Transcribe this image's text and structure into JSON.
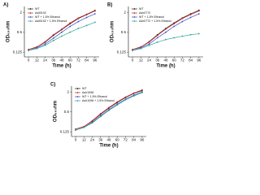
{
  "chart_data": [
    {
      "type": "line",
      "panel_label": "A)",
      "x_label": "Time (h)",
      "y_label": "OD₆₀₀nm",
      "x": [
        0,
        12,
        24,
        36,
        48,
        60,
        72,
        84,
        96
      ],
      "xlim": [
        -6,
        102
      ],
      "xticks": [
        0,
        12,
        24,
        36,
        48,
        60,
        72,
        84,
        96
      ],
      "ylim": [
        0.09,
        3
      ],
      "yticks": [
        0.125,
        0.5,
        2
      ],
      "log_scale": "y",
      "legend": "upper left",
      "series": [
        {
          "name": "WT",
          "color": "#222222",
          "values": [
            0.15,
            0.18,
            0.25,
            0.4,
            0.6,
            0.9,
            1.3,
            1.7,
            2.2
          ]
        },
        {
          "name": "Δsll0192",
          "color": "#d62728",
          "values": [
            0.15,
            0.18,
            0.26,
            0.42,
            0.62,
            0.95,
            1.35,
            1.75,
            2.3
          ]
        },
        {
          "name": "WT + 1.5% Ethanol",
          "color": "#3b4cc0",
          "values": [
            0.14,
            0.17,
            0.22,
            0.33,
            0.5,
            0.75,
            1.05,
            1.4,
            1.8
          ]
        },
        {
          "name": "Δsll0192 + 1.5% Ethanol",
          "color": "#2ca89a",
          "values": [
            0.14,
            0.16,
            0.2,
            0.28,
            0.38,
            0.5,
            0.65,
            0.8,
            1.0
          ]
        }
      ]
    },
    {
      "type": "line",
      "panel_label": "B)",
      "x_label": "Time (h)",
      "y_label": "OD₆₀₀nm",
      "x": [
        0,
        12,
        24,
        36,
        48,
        60,
        72,
        84,
        96
      ],
      "xlim": [
        -6,
        102
      ],
      "xticks": [
        0,
        12,
        24,
        36,
        48,
        60,
        72,
        84,
        96
      ],
      "ylim": [
        0.09,
        3
      ],
      "yticks": [
        0.125,
        0.5,
        2
      ],
      "log_scale": "y",
      "legend": "upper left",
      "series": [
        {
          "name": "WT",
          "color": "#222222",
          "values": [
            0.15,
            0.18,
            0.26,
            0.42,
            0.65,
            0.95,
            1.35,
            1.8,
            2.3
          ]
        },
        {
          "name": "Δslr0772",
          "color": "#d62728",
          "values": [
            0.15,
            0.18,
            0.25,
            0.4,
            0.62,
            0.9,
            1.3,
            1.7,
            2.2
          ]
        },
        {
          "name": "WT + 1.5% Ethanol",
          "color": "#3b4cc0",
          "values": [
            0.14,
            0.17,
            0.22,
            0.34,
            0.5,
            0.75,
            1.05,
            1.4,
            1.8
          ]
        },
        {
          "name": "Δslr0772 + 1.5% Ethanol",
          "color": "#2ca89a",
          "values": [
            0.14,
            0.16,
            0.2,
            0.25,
            0.3,
            0.34,
            0.38,
            0.42,
            0.45
          ]
        }
      ]
    },
    {
      "type": "line",
      "panel_label": "C)",
      "x_label": "Time (h)",
      "y_label": "OD₆₀₀nm",
      "x": [
        0,
        12,
        24,
        36,
        48,
        60,
        72,
        84,
        96
      ],
      "xlim": [
        -6,
        102
      ],
      "xticks": [
        0,
        12,
        24,
        36,
        48,
        60,
        72,
        84,
        96
      ],
      "ylim": [
        0.09,
        3
      ],
      "yticks": [
        0.125,
        0.5,
        2
      ],
      "log_scale": "y",
      "legend": "upper left",
      "series": [
        {
          "name": "WT",
          "color": "#222222",
          "values": [
            0.15,
            0.18,
            0.26,
            0.42,
            0.65,
            0.95,
            1.35,
            1.8,
            2.2
          ]
        },
        {
          "name": "Δslr1098",
          "color": "#d62728",
          "values": [
            0.15,
            0.18,
            0.27,
            0.44,
            0.68,
            1.0,
            1.4,
            1.85,
            2.3
          ]
        },
        {
          "name": "WT + 1.5% Ethanol",
          "color": "#3b4cc0",
          "values": [
            0.14,
            0.17,
            0.24,
            0.38,
            0.58,
            0.85,
            1.2,
            1.6,
            2.0
          ]
        },
        {
          "name": "Δslr1098 + 1.5% Ethanol",
          "color": "#2ca89a",
          "values": [
            0.14,
            0.17,
            0.23,
            0.36,
            0.55,
            0.8,
            1.15,
            1.5,
            1.9
          ]
        }
      ]
    }
  ]
}
